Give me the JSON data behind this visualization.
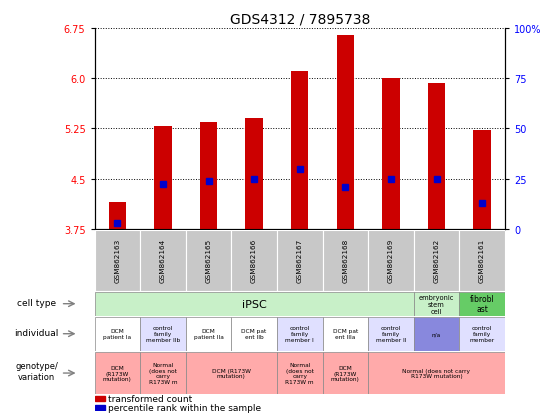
{
  "title": "GDS4312 / 7895738",
  "samples": [
    "GSM862163",
    "GSM862164",
    "GSM862165",
    "GSM862166",
    "GSM862167",
    "GSM862168",
    "GSM862169",
    "GSM862162",
    "GSM862161"
  ],
  "bar_values": [
    4.15,
    5.28,
    5.35,
    5.4,
    6.1,
    6.65,
    6.0,
    5.93,
    5.22
  ],
  "bar_base": 3.75,
  "blue_dot_values": [
    3.83,
    4.42,
    4.47,
    4.5,
    4.65,
    4.37,
    4.5,
    4.5,
    4.13
  ],
  "ylim": [
    3.75,
    6.75
  ],
  "yticks_left": [
    3.75,
    4.5,
    5.25,
    6.0,
    6.75
  ],
  "yticks_right_pos": [
    3.75,
    4.5,
    5.25,
    6.0,
    6.75
  ],
  "y_right_labels": [
    "0",
    "25",
    "50",
    "75",
    "100%"
  ],
  "bar_color": "#cc0000",
  "dot_color": "#0000cc",
  "sample_box_color": "#c8c8c8",
  "ipsc_color": "#c8f0c8",
  "esc_color": "#c8f0c8",
  "fibroblast_color": "#66cc66",
  "ind_colors": [
    "#ffffff",
    "#e0e0ff",
    "#ffffff",
    "#ffffff",
    "#e0e0ff",
    "#ffffff",
    "#e0e0ff",
    "#8888dd",
    "#e0e0ff"
  ],
  "geno_color": "#ffaaaa",
  "ind_labels": [
    "DCM\npatient Ia",
    "control\nfamily\nmember IIb",
    "DCM\npatient IIa",
    "DCM pat\nent IIb",
    "control\nfamily\nmember I",
    "DCM pat\nent IIIa",
    "control\nfamily\nmember II",
    "n/a",
    "control\nfamily\nmember"
  ],
  "geno_spans": [
    [
      0,
      1,
      "DCM\n(R173W\nmutation)"
    ],
    [
      1,
      1,
      "Normal\n(does not\ncarry\nR173W m"
    ],
    [
      2,
      2,
      "DCM (R173W\nmutation)"
    ],
    [
      4,
      1,
      "Normal\n(does not\ncarry\nR173W m"
    ],
    [
      5,
      1,
      "DCM\n(R173W\nmutation)"
    ],
    [
      6,
      3,
      "Normal (does not carry\nR173W mutation)"
    ]
  ],
  "legend_items": [
    {
      "color": "#cc0000",
      "label": "transformed count"
    },
    {
      "color": "#0000cc",
      "label": "percentile rank within the sample"
    }
  ]
}
